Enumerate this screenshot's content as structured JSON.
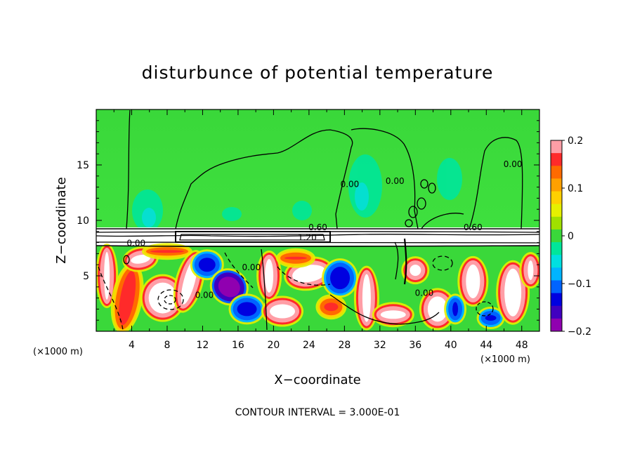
{
  "chart_data": {
    "type": "heatmap",
    "title": "disturbunce of potential temperature",
    "xlabel": "X−coordinate",
    "ylabel": "Z−coordinate",
    "x_unit": "(×1000 m)",
    "z_unit": "(×1000 m)",
    "xlim": [
      0,
      50
    ],
    "ylim": [
      0,
      20
    ],
    "x_ticks": [
      4,
      8,
      12,
      16,
      20,
      24,
      28,
      32,
      36,
      40,
      44,
      48
    ],
    "y_ticks": [
      5,
      10,
      15
    ],
    "colorbar": {
      "range": [
        -0.2,
        0.2
      ],
      "tick_values": [
        0.2,
        0.1,
        0,
        -0.1,
        -0.2
      ],
      "tick_labels": [
        "0.2",
        "0.1",
        "0",
        "−0.1",
        "−0.2"
      ],
      "colors": [
        "#ff9ea6",
        "#ff2a2a",
        "#ff6a00",
        "#ffa000",
        "#ffd000",
        "#e6f000",
        "#a0e000",
        "#3ad83a",
        "#00e69a",
        "#00e0e0",
        "#00b4ff",
        "#0064ff",
        "#0000e0",
        "#4000c0",
        "#9000b0"
      ]
    },
    "contour_labels": [
      {
        "text": "0.00",
        "x": 4.5,
        "z": 7.7
      },
      {
        "text": "0.00",
        "x": 28.6,
        "z": 13.0
      },
      {
        "text": "0.00",
        "x": 33.7,
        "z": 13.3
      },
      {
        "text": "0.00",
        "x": 47.0,
        "z": 14.8
      },
      {
        "text": "0.60",
        "x": 25.0,
        "z": 9.1
      },
      {
        "text": "0.60",
        "x": 42.5,
        "z": 9.1
      },
      {
        "text": "1.20",
        "x": 23.8,
        "z": 8.2
      },
      {
        "text": "0.00",
        "x": 17.5,
        "z": 5.5
      },
      {
        "text": "0.00",
        "x": 12.2,
        "z": 3.0
      },
      {
        "text": "0.00",
        "x": 37.0,
        "z": 3.2
      }
    ],
    "contour_interval_text": "CONTOUR INTERVAL = 3.000E-01"
  }
}
